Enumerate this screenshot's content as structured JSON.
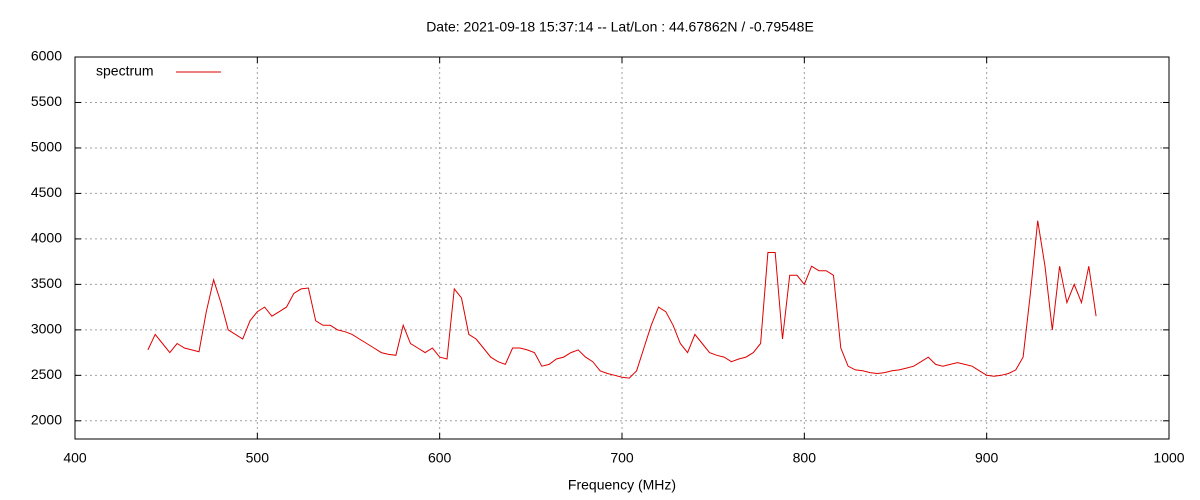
{
  "chart_data": {
    "type": "line",
    "title": "Date: 2021-09-18 15:37:14  --  Lat/Lon : 44.67862N / -0.79548E",
    "x_label": "Frequency (MHz)",
    "xlim": [
      400,
      1000
    ],
    "xticks": [
      400,
      500,
      600,
      700,
      800,
      900,
      1000
    ],
    "ylim": [
      1800,
      6000
    ],
    "yticks": [
      2000,
      2500,
      3000,
      3500,
      4000,
      4500,
      5000,
      5500,
      6000
    ],
    "grid": true,
    "legend": "top-left",
    "x": [
      440,
      444,
      448,
      452,
      456,
      460,
      464,
      468,
      472,
      476,
      480,
      484,
      488,
      492,
      496,
      500,
      504,
      508,
      512,
      516,
      520,
      524,
      528,
      532,
      536,
      540,
      544,
      548,
      552,
      556,
      560,
      564,
      568,
      572,
      576,
      580,
      584,
      588,
      592,
      596,
      600,
      604,
      608,
      612,
      616,
      620,
      624,
      628,
      632,
      636,
      640,
      644,
      648,
      652,
      656,
      660,
      664,
      668,
      672,
      676,
      680,
      684,
      688,
      692,
      696,
      700,
      704,
      708,
      712,
      716,
      720,
      724,
      728,
      732,
      736,
      740,
      744,
      748,
      752,
      756,
      760,
      764,
      768,
      772,
      776,
      780,
      784,
      788,
      792,
      796,
      800,
      804,
      808,
      812,
      816,
      820,
      824,
      828,
      832,
      836,
      840,
      844,
      848,
      852,
      856,
      860,
      864,
      868,
      872,
      876,
      880,
      884,
      888,
      892,
      896,
      900,
      904,
      908,
      912,
      916,
      920,
      924,
      928,
      932,
      936,
      940,
      944,
      948,
      952,
      956,
      960
    ],
    "series": [
      {
        "name": "spectrum",
        "color": "#e00000",
        "values": [
          2780,
          2950,
          2850,
          2750,
          2850,
          2800,
          2780,
          2760,
          3200,
          3550,
          3300,
          3000,
          2950,
          2900,
          3100,
          3200,
          3250,
          3150,
          3200,
          3250,
          3400,
          3450,
          3460,
          3100,
          3050,
          3050,
          3000,
          2980,
          2950,
          2900,
          2850,
          2800,
          2750,
          2730,
          2720,
          3050,
          2850,
          2800,
          2750,
          2800,
          2700,
          2680,
          3450,
          3350,
          2950,
          2900,
          2800,
          2700,
          2650,
          2620,
          2800,
          2800,
          2780,
          2750,
          2600,
          2620,
          2680,
          2700,
          2750,
          2780,
          2700,
          2650,
          2550,
          2520,
          2500,
          2480,
          2470,
          2550,
          2800,
          3050,
          3250,
          3200,
          3050,
          2850,
          2750,
          2950,
          2850,
          2750,
          2720,
          2700,
          2650,
          2680,
          2700,
          2750,
          2850,
          3850,
          3850,
          2900,
          3600,
          3600,
          3500,
          3700,
          3650,
          3650,
          3600,
          2800,
          2600,
          2560,
          2550,
          2530,
          2520,
          2530,
          2550,
          2560,
          2580,
          2600,
          2650,
          2700,
          2620,
          2600,
          2620,
          2640,
          2620,
          2600,
          2550,
          2500,
          2490,
          2500,
          2520,
          2560,
          2700,
          3400,
          4200,
          3700,
          3000,
          3700,
          3300,
          3500,
          3300,
          3700,
          3150
        ]
      }
    ]
  }
}
